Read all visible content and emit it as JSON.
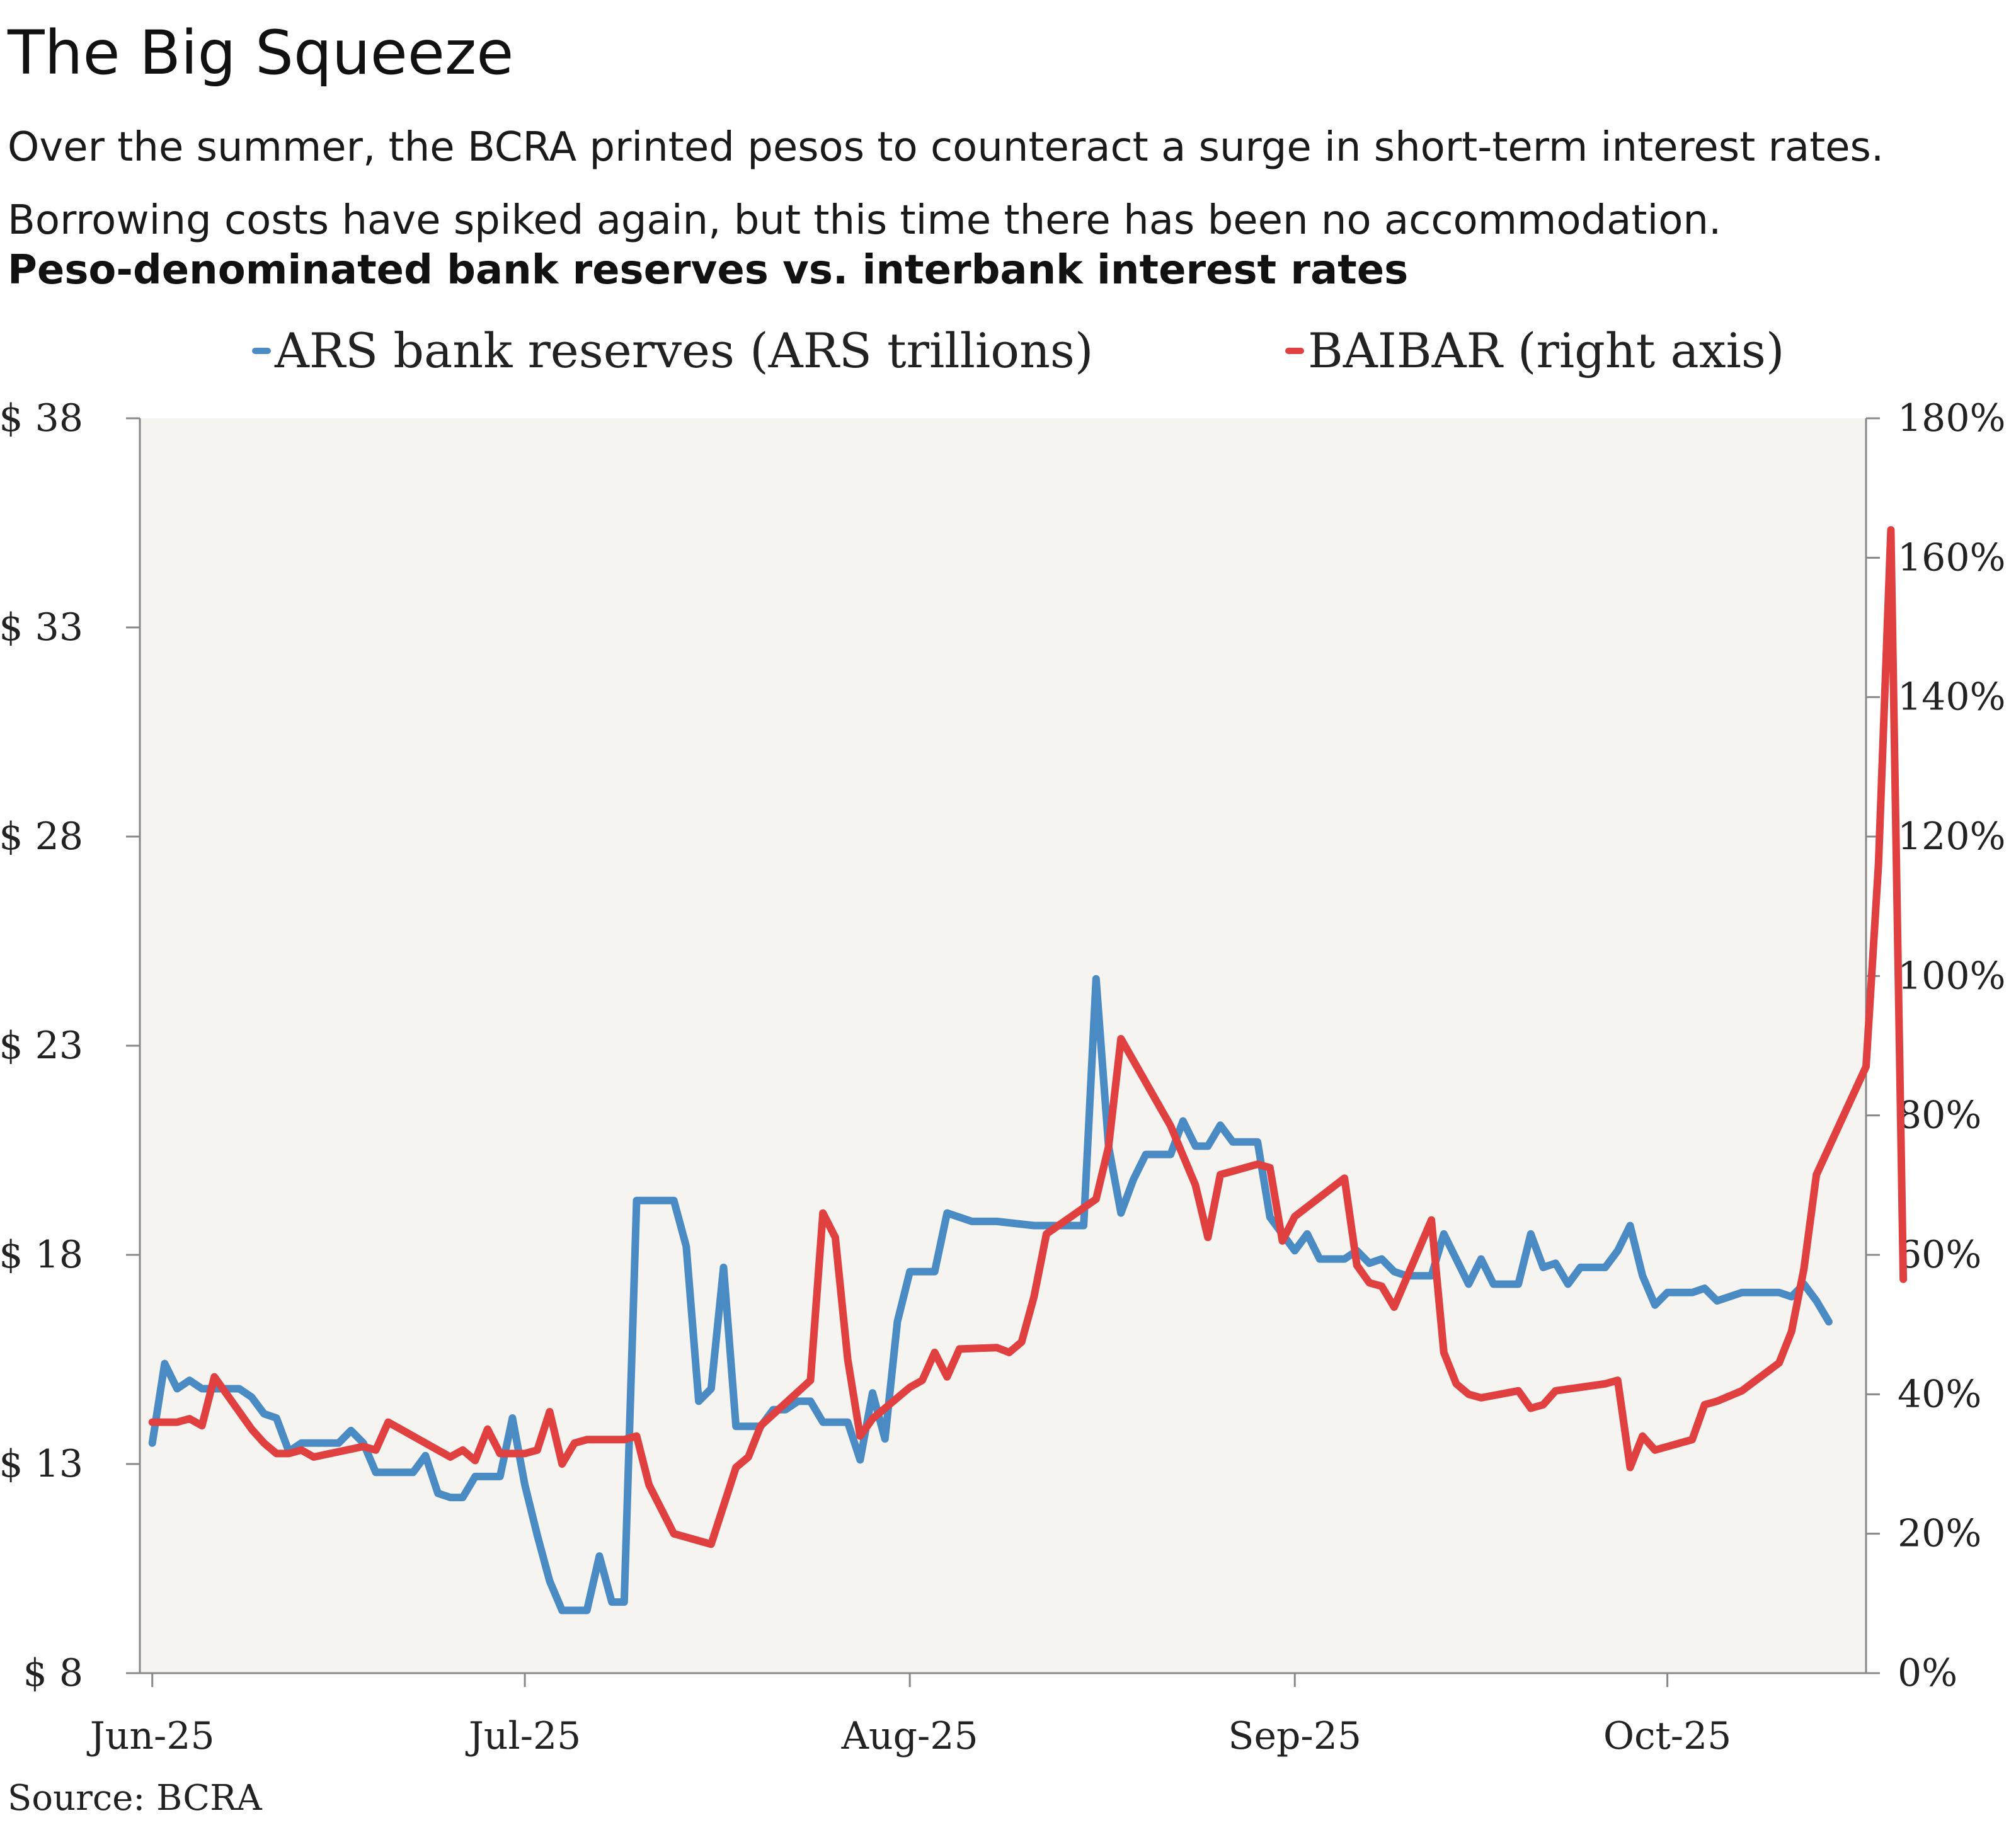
{
  "title": "The Big Squeeze",
  "subtitle": "Over the summer, the BCRA printed pesos to counteract a surge in short-term interest rates. Borrowing costs have spiked again, but this time there has been no accommodation.",
  "chart_heading": "Peso-denominated bank reserves vs. interbank interest rates",
  "source": "Source: BCRA",
  "colors": {
    "reserves": "#4a8bc4",
    "baibar": "#e04040",
    "plot_bg": "#f6f4f0",
    "axis": "#888888"
  },
  "chart_data": {
    "type": "line",
    "legend_position": "top",
    "grid": false,
    "x_ticks": [
      "Jun-25",
      "Jul-25",
      "Aug-25",
      "Sep-25",
      "Oct-25"
    ],
    "x_range": [
      "2025-05-31",
      "2025-10-17"
    ],
    "y_left": {
      "range": [
        8,
        38
      ],
      "ticks": [
        8,
        13,
        18,
        23,
        28,
        33,
        38
      ],
      "tick_labels": [
        "$ 8",
        "$ 13",
        "$ 18",
        "$ 23",
        "$ 28",
        "$ 33",
        "$ 38"
      ]
    },
    "y_right": {
      "range": [
        0,
        180
      ],
      "ticks": [
        0,
        20,
        40,
        60,
        80,
        100,
        120,
        140,
        160,
        180
      ],
      "tick_labels": [
        "0%",
        "20%",
        "40%",
        "60%",
        "80%",
        "100%",
        "120%",
        "140%",
        "160%",
        "180%"
      ]
    },
    "series": [
      {
        "name": "ARS bank reserves (ARS trillions)",
        "axis": "left",
        "color": "#4a8bc4",
        "points": [
          [
            "2025-06-01",
            13.5
          ],
          [
            "2025-06-02",
            15.4
          ],
          [
            "2025-06-03",
            14.8
          ],
          [
            "2025-06-04",
            15.0
          ],
          [
            "2025-06-05",
            14.8
          ],
          [
            "2025-06-06",
            14.8
          ],
          [
            "2025-06-08",
            14.8
          ],
          [
            "2025-06-09",
            14.6
          ],
          [
            "2025-06-10",
            14.2
          ],
          [
            "2025-06-11",
            14.1
          ],
          [
            "2025-06-12",
            13.3
          ],
          [
            "2025-06-13",
            13.5
          ],
          [
            "2025-06-16",
            13.5
          ],
          [
            "2025-06-17",
            13.8
          ],
          [
            "2025-06-18",
            13.5
          ],
          [
            "2025-06-19",
            12.8
          ],
          [
            "2025-06-22",
            12.8
          ],
          [
            "2025-06-23",
            13.2
          ],
          [
            "2025-06-24",
            12.3
          ],
          [
            "2025-06-25",
            12.2
          ],
          [
            "2025-06-26",
            12.2
          ],
          [
            "2025-06-27",
            12.7
          ],
          [
            "2025-06-29",
            12.7
          ],
          [
            "2025-06-30",
            14.1
          ],
          [
            "2025-07-01",
            12.5
          ],
          [
            "2025-07-02",
            11.3
          ],
          [
            "2025-07-03",
            10.2
          ],
          [
            "2025-07-04",
            9.5
          ],
          [
            "2025-07-06",
            9.5
          ],
          [
            "2025-07-07",
            10.8
          ],
          [
            "2025-07-08",
            9.7
          ],
          [
            "2025-07-09",
            9.7
          ],
          [
            "2025-07-10",
            19.3
          ],
          [
            "2025-07-13",
            19.3
          ],
          [
            "2025-07-14",
            18.2
          ],
          [
            "2025-07-15",
            14.5
          ],
          [
            "2025-07-16",
            14.8
          ],
          [
            "2025-07-17",
            17.7
          ],
          [
            "2025-07-18",
            13.9
          ],
          [
            "2025-07-20",
            13.9
          ],
          [
            "2025-07-21",
            14.3
          ],
          [
            "2025-07-22",
            14.3
          ],
          [
            "2025-07-23",
            14.5
          ],
          [
            "2025-07-24",
            14.5
          ],
          [
            "2025-07-25",
            14.0
          ],
          [
            "2025-07-27",
            14.0
          ],
          [
            "2025-07-28",
            13.1
          ],
          [
            "2025-07-29",
            14.7
          ],
          [
            "2025-07-30",
            13.6
          ],
          [
            "2025-07-31",
            16.4
          ],
          [
            "2025-08-01",
            17.6
          ],
          [
            "2025-08-03",
            17.6
          ],
          [
            "2025-08-04",
            19.0
          ],
          [
            "2025-08-06",
            18.8
          ],
          [
            "2025-08-07",
            18.8
          ],
          [
            "2025-08-08",
            18.8
          ],
          [
            "2025-08-11",
            18.7
          ],
          [
            "2025-08-12",
            18.7
          ],
          [
            "2025-08-15",
            18.7
          ],
          [
            "2025-08-16",
            24.6
          ],
          [
            "2025-08-17",
            20.6
          ],
          [
            "2025-08-18",
            19.0
          ],
          [
            "2025-08-19",
            19.8
          ],
          [
            "2025-08-20",
            20.4
          ],
          [
            "2025-08-22",
            20.4
          ],
          [
            "2025-08-23",
            21.2
          ],
          [
            "2025-08-24",
            20.6
          ],
          [
            "2025-08-25",
            20.6
          ],
          [
            "2025-08-26",
            21.1
          ],
          [
            "2025-08-27",
            20.7
          ],
          [
            "2025-08-29",
            20.7
          ],
          [
            "2025-08-30",
            18.9
          ],
          [
            "2025-09-01",
            18.1
          ],
          [
            "2025-09-02",
            18.5
          ],
          [
            "2025-09-03",
            17.9
          ],
          [
            "2025-09-05",
            17.9
          ],
          [
            "2025-09-06",
            18.1
          ],
          [
            "2025-09-07",
            17.8
          ],
          [
            "2025-09-08",
            17.9
          ],
          [
            "2025-09-09",
            17.6
          ],
          [
            "2025-09-10",
            17.5
          ],
          [
            "2025-09-12",
            17.5
          ],
          [
            "2025-09-13",
            18.5
          ],
          [
            "2025-09-14",
            17.9
          ],
          [
            "2025-09-15",
            17.3
          ],
          [
            "2025-09-16",
            17.9
          ],
          [
            "2025-09-17",
            17.3
          ],
          [
            "2025-09-19",
            17.3
          ],
          [
            "2025-09-20",
            18.5
          ],
          [
            "2025-09-21",
            17.7
          ],
          [
            "2025-09-22",
            17.8
          ],
          [
            "2025-09-23",
            17.3
          ],
          [
            "2025-09-24",
            17.7
          ],
          [
            "2025-09-26",
            17.7
          ],
          [
            "2025-09-27",
            18.1
          ],
          [
            "2025-09-28",
            18.7
          ],
          [
            "2025-09-29",
            17.5
          ],
          [
            "2025-09-30",
            16.8
          ],
          [
            "2025-10-01",
            17.1
          ],
          [
            "2025-10-03",
            17.1
          ],
          [
            "2025-10-04",
            17.2
          ],
          [
            "2025-10-05",
            16.9
          ],
          [
            "2025-10-06",
            17.0
          ],
          [
            "2025-10-07",
            17.1
          ],
          [
            "2025-10-10",
            17.1
          ],
          [
            "2025-10-11",
            17.0
          ],
          [
            "2025-10-12",
            17.3
          ],
          [
            "2025-10-13",
            16.9
          ],
          [
            "2025-10-14",
            16.4
          ]
        ]
      },
      {
        "name": "BAIBAR (right axis)",
        "axis": "right",
        "color": "#e04040",
        "points": [
          [
            "2025-06-01",
            36
          ],
          [
            "2025-06-03",
            36
          ],
          [
            "2025-06-04",
            36.5
          ],
          [
            "2025-06-05",
            35.5
          ],
          [
            "2025-06-06",
            42.5
          ],
          [
            "2025-06-09",
            35
          ],
          [
            "2025-06-10",
            33
          ],
          [
            "2025-06-11",
            31.5
          ],
          [
            "2025-06-12",
            31.5
          ],
          [
            "2025-06-13",
            32
          ],
          [
            "2025-06-14",
            31
          ],
          [
            "2025-06-18",
            32.5
          ],
          [
            "2025-06-19",
            32
          ],
          [
            "2025-06-20",
            36
          ],
          [
            "2025-06-24",
            32
          ],
          [
            "2025-06-25",
            31
          ],
          [
            "2025-06-26",
            32
          ],
          [
            "2025-06-27",
            30.5
          ],
          [
            "2025-06-28",
            35
          ],
          [
            "2025-06-29",
            31.5
          ],
          [
            "2025-07-01",
            31.5
          ],
          [
            "2025-07-02",
            32
          ],
          [
            "2025-07-03",
            37.5
          ],
          [
            "2025-07-04",
            30
          ],
          [
            "2025-07-05",
            33
          ],
          [
            "2025-07-06",
            33.5
          ],
          [
            "2025-07-09",
            33.5
          ],
          [
            "2025-07-10",
            34
          ],
          [
            "2025-07-11",
            27
          ],
          [
            "2025-07-13",
            20
          ],
          [
            "2025-07-16",
            18.5
          ],
          [
            "2025-07-17",
            24
          ],
          [
            "2025-07-18",
            29.5
          ],
          [
            "2025-07-19",
            31
          ],
          [
            "2025-07-20",
            35.5
          ],
          [
            "2025-07-24",
            42
          ],
          [
            "2025-07-25",
            66
          ],
          [
            "2025-07-26",
            62.5
          ],
          [
            "2025-07-27",
            45
          ],
          [
            "2025-07-28",
            34
          ],
          [
            "2025-07-29",
            36.5
          ],
          [
            "2025-08-01",
            41
          ],
          [
            "2025-08-02",
            42
          ],
          [
            "2025-08-03",
            46
          ],
          [
            "2025-08-04",
            42.5
          ],
          [
            "2025-08-05",
            46.5
          ],
          [
            "2025-08-08",
            46.7
          ],
          [
            "2025-08-09",
            46
          ],
          [
            "2025-08-10",
            47.5
          ],
          [
            "2025-08-11",
            54
          ],
          [
            "2025-08-12",
            63
          ],
          [
            "2025-08-16",
            68
          ],
          [
            "2025-08-17",
            75.5
          ],
          [
            "2025-08-18",
            91
          ],
          [
            "2025-08-22",
            78.5
          ],
          [
            "2025-08-24",
            70
          ],
          [
            "2025-08-25",
            62.5
          ],
          [
            "2025-08-26",
            71.5
          ],
          [
            "2025-08-29",
            73
          ],
          [
            "2025-08-30",
            72.5
          ],
          [
            "2025-08-31",
            62
          ],
          [
            "2025-09-01",
            65.5
          ],
          [
            "2025-09-05",
            71
          ],
          [
            "2025-09-06",
            58.5
          ],
          [
            "2025-09-07",
            56
          ],
          [
            "2025-09-08",
            55.5
          ],
          [
            "2025-09-09",
            52.5
          ],
          [
            "2025-09-12",
            65
          ],
          [
            "2025-09-13",
            46
          ],
          [
            "2025-09-14",
            41.5
          ],
          [
            "2025-09-15",
            40
          ],
          [
            "2025-09-16",
            39.5
          ],
          [
            "2025-09-19",
            40.5
          ],
          [
            "2025-09-20",
            38
          ],
          [
            "2025-09-21",
            38.5
          ],
          [
            "2025-09-22",
            40.5
          ],
          [
            "2025-09-26",
            41.5
          ],
          [
            "2025-09-27",
            42
          ],
          [
            "2025-09-28",
            29.5
          ],
          [
            "2025-09-29",
            34
          ],
          [
            "2025-09-30",
            32
          ],
          [
            "2025-10-03",
            33.5
          ],
          [
            "2025-10-04",
            38.5
          ],
          [
            "2025-10-05",
            39
          ],
          [
            "2025-10-07",
            40.5
          ],
          [
            "2025-10-10",
            44.5
          ],
          [
            "2025-10-11",
            49
          ],
          [
            "2025-10-12",
            58
          ],
          [
            "2025-10-13",
            71.5
          ],
          [
            "2025-10-17",
            87
          ],
          [
            "2025-10-18",
            116
          ],
          [
            "2025-10-19",
            164
          ],
          [
            "2025-10-20",
            56.5
          ]
        ]
      }
    ]
  }
}
